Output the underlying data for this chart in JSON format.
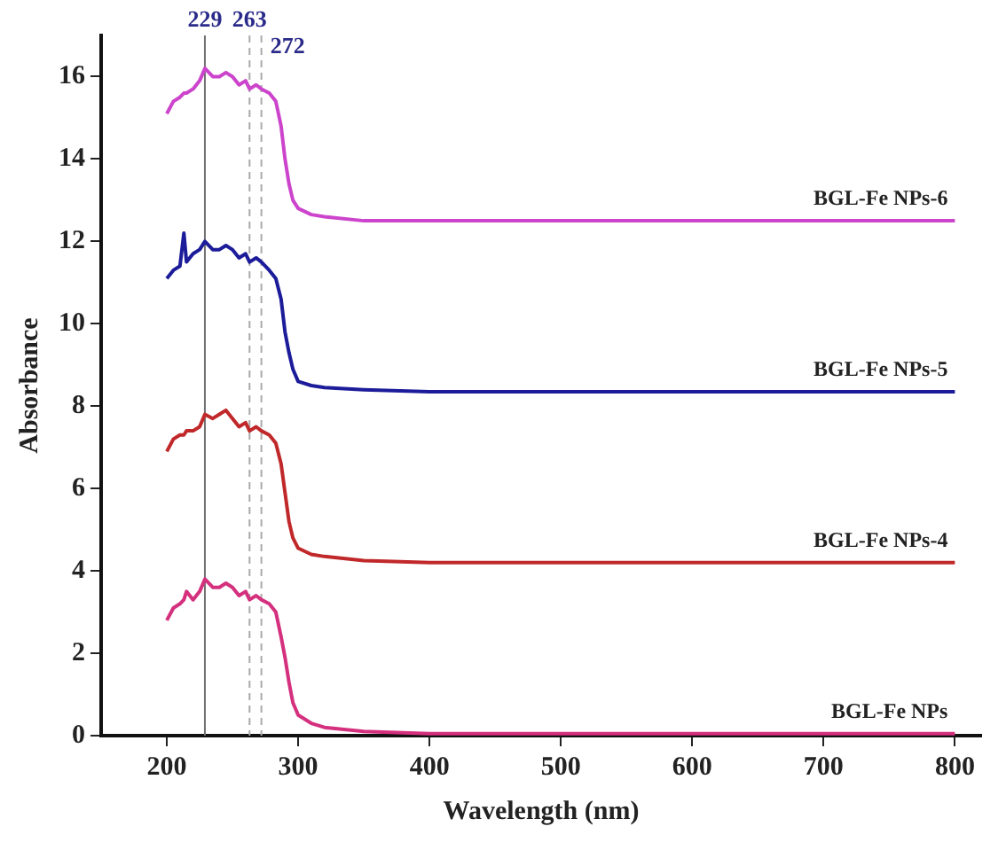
{
  "chart_data": {
    "type": "line",
    "xlabel": "Wavelength (nm)",
    "ylabel": "Absorbance",
    "xlim": [
      150,
      820
    ],
    "xticks": [
      200,
      300,
      400,
      500,
      600,
      700,
      800
    ],
    "ylim": [
      0,
      17
    ],
    "yticks": [
      0,
      2,
      4,
      6,
      8,
      10,
      12,
      14,
      16
    ],
    "marker": "none",
    "line_style": "solid",
    "x": [
      200,
      205,
      210,
      213,
      215,
      220,
      225,
      229,
      235,
      240,
      245,
      250,
      255,
      260,
      263,
      268,
      272,
      278,
      283,
      287,
      290,
      293,
      296,
      300,
      310,
      320,
      350,
      400,
      500,
      600,
      700,
      800
    ],
    "series": [
      {
        "name": "BGL-Fe NPs",
        "color": "#d4307e",
        "values": [
          2.8,
          3.1,
          3.2,
          3.3,
          3.5,
          3.3,
          3.5,
          3.8,
          3.6,
          3.6,
          3.7,
          3.6,
          3.4,
          3.5,
          3.3,
          3.4,
          3.3,
          3.2,
          3.0,
          2.4,
          1.9,
          1.3,
          0.8,
          0.5,
          0.3,
          0.2,
          0.1,
          0.05,
          0.05,
          0.05,
          0.05,
          0.05
        ]
      },
      {
        "name": "BGL-Fe NPs-4",
        "color": "#c0282a",
        "values": [
          6.9,
          7.2,
          7.3,
          7.3,
          7.4,
          7.4,
          7.5,
          7.8,
          7.7,
          7.8,
          7.9,
          7.7,
          7.5,
          7.6,
          7.4,
          7.5,
          7.4,
          7.3,
          7.1,
          6.6,
          5.9,
          5.2,
          4.8,
          4.55,
          4.4,
          4.35,
          4.25,
          4.2,
          4.2,
          4.2,
          4.2,
          4.2
        ]
      },
      {
        "name": "BGL-Fe NPs-5",
        "color": "#1c1c9a",
        "values": [
          11.1,
          11.3,
          11.4,
          12.2,
          11.5,
          11.7,
          11.8,
          12.0,
          11.8,
          11.8,
          11.9,
          11.8,
          11.6,
          11.7,
          11.5,
          11.6,
          11.5,
          11.3,
          11.1,
          10.6,
          9.8,
          9.3,
          8.9,
          8.6,
          8.5,
          8.45,
          8.4,
          8.35,
          8.35,
          8.35,
          8.35,
          8.35
        ]
      },
      {
        "name": "BGL-Fe NPs-6",
        "color": "#cc44cc",
        "values": [
          15.1,
          15.4,
          15.5,
          15.6,
          15.6,
          15.7,
          15.9,
          16.2,
          16.0,
          16.0,
          16.1,
          16.0,
          15.8,
          15.9,
          15.7,
          15.8,
          15.7,
          15.6,
          15.4,
          14.8,
          14.0,
          13.4,
          13.0,
          12.8,
          12.65,
          12.6,
          12.5,
          12.5,
          12.5,
          12.5,
          12.5,
          12.5
        ]
      }
    ],
    "ref_lines": [
      {
        "axis": "x",
        "value": 229,
        "label": "229",
        "color": "#707070",
        "line_style": "solid"
      },
      {
        "axis": "x",
        "value": 263,
        "label": "263",
        "color": "#aaaaaa",
        "line_style": "dashed"
      },
      {
        "axis": "x",
        "value": 272,
        "label": "272",
        "color": "#aaaaaa",
        "line_style": "dashed"
      }
    ]
  }
}
